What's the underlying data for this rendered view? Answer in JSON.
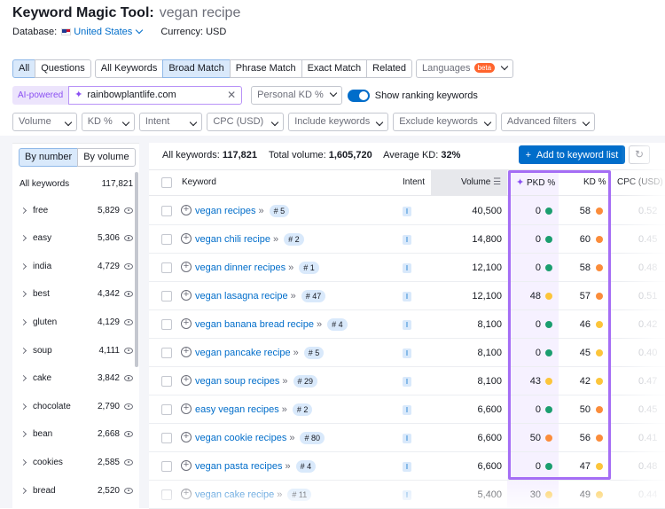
{
  "header": {
    "tool_name": "Keyword Magic Tool:",
    "query": "vegan recipe",
    "database_label": "Database:",
    "database_value": "United States",
    "currency": "Currency: USD"
  },
  "match_tabs": [
    "All",
    "Questions"
  ],
  "match_types": [
    "All Keywords",
    "Broad Match",
    "Phrase Match",
    "Exact Match",
    "Related"
  ],
  "languages": {
    "label": "Languages",
    "badge": "beta"
  },
  "ai": {
    "tag": "AI-powered",
    "domain_value": "rainbowplantlife.com",
    "personal_kd_label": "Personal KD %",
    "toggle_label": "Show ranking keywords"
  },
  "filters": [
    "Volume",
    "KD %",
    "Intent",
    "CPC (USD)",
    "Include keywords",
    "Exclude keywords",
    "Advanced filters"
  ],
  "left_panel": {
    "sort_buttons": [
      "By number",
      "By volume"
    ],
    "all_label": "All keywords",
    "all_count": "117,821",
    "groups": [
      {
        "name": "free",
        "count": "5,829"
      },
      {
        "name": "easy",
        "count": "5,306"
      },
      {
        "name": "india",
        "count": "4,729"
      },
      {
        "name": "best",
        "count": "4,342"
      },
      {
        "name": "gluten",
        "count": "4,129"
      },
      {
        "name": "soup",
        "count": "4,111"
      },
      {
        "name": "cake",
        "count": "3,842"
      },
      {
        "name": "chocolate",
        "count": "2,790"
      },
      {
        "name": "bean",
        "count": "2,668"
      },
      {
        "name": "cookies",
        "count": "2,585"
      },
      {
        "name": "bread",
        "count": "2,520"
      }
    ]
  },
  "summary": {
    "all_keywords_label": "All keywords:",
    "all_keywords_value": "117,821",
    "total_volume_label": "Total volume:",
    "total_volume_value": "1,605,720",
    "avg_kd_label": "Average KD:",
    "avg_kd_value": "32%"
  },
  "add_button": "Add to keyword list",
  "columns": {
    "keyword": "Keyword",
    "intent": "Intent",
    "volume": "Volume",
    "pkd": "PKD %",
    "kd": "KD %",
    "cpc": "CPC (USD)"
  },
  "colors": {
    "green": "#1b9e6f",
    "yellow": "#fcc53a",
    "orange": "#fb8c3a",
    "highlight": "#a56ef5",
    "link": "#006dca"
  },
  "rows": [
    {
      "keyword": "vegan recipes",
      "serp": "# 5",
      "intent": "I",
      "volume": "40,500",
      "pkd": "0",
      "pkd_color": "#1b9e6f",
      "kd": "58",
      "kd_color": "#fb8c3a",
      "cpc": "0.52"
    },
    {
      "keyword": "vegan chili recipe",
      "serp": "# 2",
      "intent": "I",
      "volume": "14,800",
      "pkd": "0",
      "pkd_color": "#1b9e6f",
      "kd": "60",
      "kd_color": "#fb8c3a",
      "cpc": "0.45"
    },
    {
      "keyword": "vegan dinner recipes",
      "serp": "# 1",
      "intent": "I",
      "volume": "12,100",
      "pkd": "0",
      "pkd_color": "#1b9e6f",
      "kd": "58",
      "kd_color": "#fb8c3a",
      "cpc": "0.48"
    },
    {
      "keyword": "vegan lasagna recipe",
      "serp": "# 47",
      "intent": "I",
      "volume": "12,100",
      "pkd": "48",
      "pkd_color": "#fcc53a",
      "kd": "57",
      "kd_color": "#fb8c3a",
      "cpc": "0.51"
    },
    {
      "keyword": "vegan banana bread recipe",
      "serp": "# 4",
      "intent": "I",
      "volume": "8,100",
      "pkd": "0",
      "pkd_color": "#1b9e6f",
      "kd": "46",
      "kd_color": "#fcc53a",
      "cpc": "0.42"
    },
    {
      "keyword": "vegan pancake recipe",
      "serp": "# 5",
      "intent": "I",
      "volume": "8,100",
      "pkd": "0",
      "pkd_color": "#1b9e6f",
      "kd": "45",
      "kd_color": "#fcc53a",
      "cpc": "0.40"
    },
    {
      "keyword": "vegan soup recipes",
      "serp": "# 29",
      "intent": "I",
      "volume": "8,100",
      "pkd": "43",
      "pkd_color": "#fcc53a",
      "kd": "42",
      "kd_color": "#fcc53a",
      "cpc": "0.47"
    },
    {
      "keyword": "easy vegan recipes",
      "serp": "# 2",
      "intent": "I",
      "volume": "6,600",
      "pkd": "0",
      "pkd_color": "#1b9e6f",
      "kd": "50",
      "kd_color": "#fb8c3a",
      "cpc": "0.45"
    },
    {
      "keyword": "vegan cookie recipes",
      "serp": "# 80",
      "intent": "I",
      "volume": "6,600",
      "pkd": "50",
      "pkd_color": "#fb8c3a",
      "kd": "56",
      "kd_color": "#fb8c3a",
      "cpc": "0.41"
    },
    {
      "keyword": "vegan pasta recipes",
      "serp": "# 4",
      "intent": "I",
      "volume": "6,600",
      "pkd": "0",
      "pkd_color": "#1b9e6f",
      "kd": "47",
      "kd_color": "#fcc53a",
      "cpc": "0.48"
    },
    {
      "keyword": "vegan cake recipe",
      "serp": "# 11",
      "intent": "I",
      "volume": "5,400",
      "pkd": "30",
      "pkd_color": "#fcc53a",
      "kd": "49",
      "kd_color": "#fcc53a",
      "cpc": "0.44"
    }
  ]
}
